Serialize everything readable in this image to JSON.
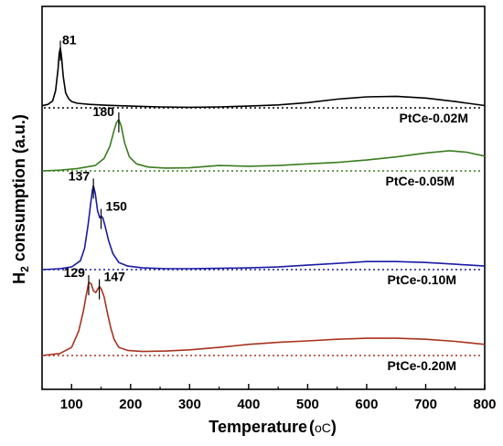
{
  "chart_data": {
    "type": "line",
    "xlabel": "Temperature (°C)",
    "xlabel_text": "Temperature",
    "xlabel_unit": "oC",
    "ylabel": "H2 consumption (a.u.)",
    "ylabel_pre": "H",
    "ylabel_sub": "2",
    "ylabel_post": " consumption (a.u.)",
    "xlim": [
      50,
      800
    ],
    "xticks": [
      100,
      200,
      300,
      400,
      500,
      600,
      700,
      800
    ],
    "xtick_labels": [
      "100",
      "200",
      "300",
      "400",
      "500",
      "600",
      "700",
      "800"
    ],
    "y_ticks_shown": false,
    "series": [
      {
        "name": "PtCe-0.02M",
        "color": "#000000",
        "baseline": 0,
        "x": [
          50,
          60,
          68,
          73,
          77,
          79,
          81,
          83,
          86,
          90,
          95,
          100,
          110,
          130,
          160,
          200,
          250,
          300,
          350,
          400,
          450,
          500,
          550,
          600,
          650,
          700,
          750,
          800
        ],
        "y": [
          0.18,
          0.3,
          0.6,
          1.5,
          3.3,
          4.7,
          5.2,
          4.4,
          2.7,
          1.3,
          0.8,
          0.55,
          0.4,
          0.3,
          0.22,
          0.15,
          0.08,
          0.05,
          0.08,
          0.15,
          0.25,
          0.45,
          0.75,
          0.95,
          1.0,
          0.85,
          0.55,
          0.2
        ],
        "peaks": [
          {
            "x": 81,
            "label": "81"
          }
        ]
      },
      {
        "name": "PtCe-0.05M",
        "color": "#3a7d1f",
        "baseline": 0,
        "x": [
          50,
          80,
          110,
          140,
          155,
          165,
          172,
          176,
          180,
          184,
          190,
          198,
          210,
          230,
          260,
          300,
          350,
          400,
          450,
          500,
          550,
          600,
          650,
          700,
          740,
          770,
          800
        ],
        "y": [
          0,
          0.05,
          0.15,
          0.35,
          0.8,
          1.6,
          2.6,
          3.1,
          3.3,
          2.9,
          1.8,
          0.9,
          0.45,
          0.25,
          0.18,
          0.2,
          0.35,
          0.3,
          0.35,
          0.45,
          0.55,
          0.7,
          0.9,
          1.15,
          1.3,
          1.2,
          0.95
        ],
        "peaks": [
          {
            "x": 180,
            "label": "180"
          }
        ]
      },
      {
        "name": "PtCe-0.10M",
        "color": "#1a1aa6",
        "baseline": 0,
        "x": [
          50,
          80,
          100,
          115,
          122,
          128,
          132,
          135,
          137,
          140,
          144,
          148,
          150,
          153,
          157,
          163,
          170,
          180,
          195,
          220,
          260,
          300,
          350,
          400,
          450,
          500,
          550,
          600,
          650,
          700,
          750,
          800
        ],
        "y": [
          0,
          0.05,
          0.15,
          0.5,
          1.2,
          2.5,
          3.6,
          4.4,
          4.7,
          4.3,
          3.3,
          2.9,
          3.0,
          2.9,
          2.4,
          1.6,
          0.9,
          0.4,
          0.2,
          0.1,
          0.05,
          0.05,
          0.07,
          0.1,
          0.15,
          0.25,
          0.35,
          0.45,
          0.45,
          0.4,
          0.3,
          0.2
        ],
        "peaks": [
          {
            "x": 137,
            "label": "137"
          },
          {
            "x": 150,
            "label": "150"
          }
        ]
      },
      {
        "name": "PtCe-0.20M",
        "color": "#a8321f",
        "baseline": 0,
        "x": [
          50,
          80,
          100,
          112,
          120,
          125,
          129,
          133,
          137,
          141,
          145,
          147,
          150,
          155,
          160,
          166,
          172,
          180,
          195,
          220,
          260,
          300,
          350,
          400,
          450,
          500,
          550,
          600,
          650,
          700,
          750,
          800
        ],
        "y": [
          0,
          0.1,
          0.4,
          1.2,
          2.2,
          3.0,
          3.6,
          3.55,
          3.2,
          3.1,
          3.3,
          3.4,
          3.3,
          2.9,
          2.2,
          1.4,
          0.8,
          0.4,
          0.25,
          0.2,
          0.22,
          0.28,
          0.4,
          0.55,
          0.65,
          0.72,
          0.8,
          0.85,
          0.85,
          0.8,
          0.7,
          0.55
        ],
        "peaks": [
          {
            "x": 129,
            "label": "129"
          },
          {
            "x": 147,
            "label": "147"
          }
        ]
      }
    ]
  }
}
